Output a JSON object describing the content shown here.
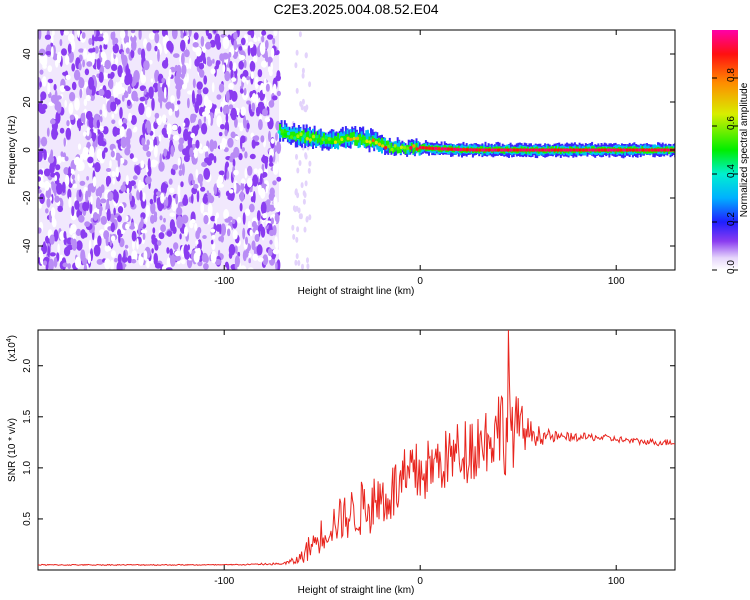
{
  "title": "C2E3.2025.004.08.52.E04",
  "chart_data": [
    {
      "type": "heatmap",
      "xlabel": "Height of straight line (km)",
      "ylabel": "Frequency (Hz)",
      "xlim": [
        -195,
        130
      ],
      "ylim": [
        -50,
        50
      ],
      "x_ticks": [
        -100,
        0,
        100
      ],
      "y_ticks": [
        -40,
        -20,
        0,
        20,
        40
      ],
      "noise_region_x": [
        -195,
        -72
      ],
      "colorbar": {
        "label": "Normalized spectral amplitude",
        "range": [
          0,
          1
        ],
        "ticks": [
          0.0,
          0.2,
          0.4,
          0.6,
          0.8
        ]
      },
      "ridge": {
        "x": [
          -72,
          -65,
          -55,
          -45,
          -35,
          -25,
          -20,
          -15,
          -10,
          -5,
          0,
          10,
          20,
          30,
          40,
          50,
          60,
          80,
          100,
          130
        ],
        "frequency": [
          8,
          6,
          5,
          4,
          5,
          4,
          2,
          1,
          1,
          1,
          1,
          0.5,
          0.2,
          0,
          0,
          0,
          0,
          0,
          0,
          0
        ],
        "peak_amplitude": [
          0.55,
          0.65,
          0.7,
          0.75,
          0.8,
          0.85,
          0.9,
          0.9,
          0.92,
          0.95,
          0.95,
          0.97,
          0.97,
          0.98,
          0.98,
          0.98,
          0.98,
          0.98,
          0.98,
          0.98
        ]
      }
    },
    {
      "type": "line",
      "xlabel": "Height of straight line (km)",
      "ylabel": "SNR (10 * v/v)",
      "y_scale_label": "(x10",
      "y_scale_exponent": "4",
      "xlim": [
        -195,
        130
      ],
      "ylim": [
        0,
        2.35
      ],
      "x_ticks": [
        -100,
        0,
        100
      ],
      "y_ticks": [
        0.5,
        1.0,
        1.5,
        2.0
      ],
      "color": "#e8251e",
      "x": [
        -195,
        -150,
        -100,
        -70,
        -62,
        -55,
        -45,
        -35,
        -25,
        -15,
        -5,
        5,
        15,
        25,
        35,
        40,
        45,
        50,
        55,
        60,
        70,
        80,
        90,
        100,
        110,
        120,
        130
      ],
      "y": [
        0.05,
        0.05,
        0.05,
        0.06,
        0.1,
        0.25,
        0.45,
        0.55,
        0.65,
        0.75,
        0.9,
        1.0,
        1.1,
        1.2,
        1.3,
        1.4,
        1.4,
        1.4,
        1.35,
        1.32,
        1.3,
        1.3,
        1.3,
        1.28,
        1.26,
        1.25,
        1.25
      ],
      "noise_amplitude": [
        0,
        0,
        0,
        0.01,
        0.05,
        0.15,
        0.2,
        0.25,
        0.3,
        0.3,
        0.35,
        0.3,
        0.3,
        0.35,
        0.35,
        0.4,
        0.5,
        0.3,
        0.15,
        0.1,
        0.05,
        0.04,
        0.04,
        0.03,
        0.03,
        0.03,
        0.03
      ],
      "peak": {
        "x": 45,
        "y": 2.35
      }
    }
  ]
}
